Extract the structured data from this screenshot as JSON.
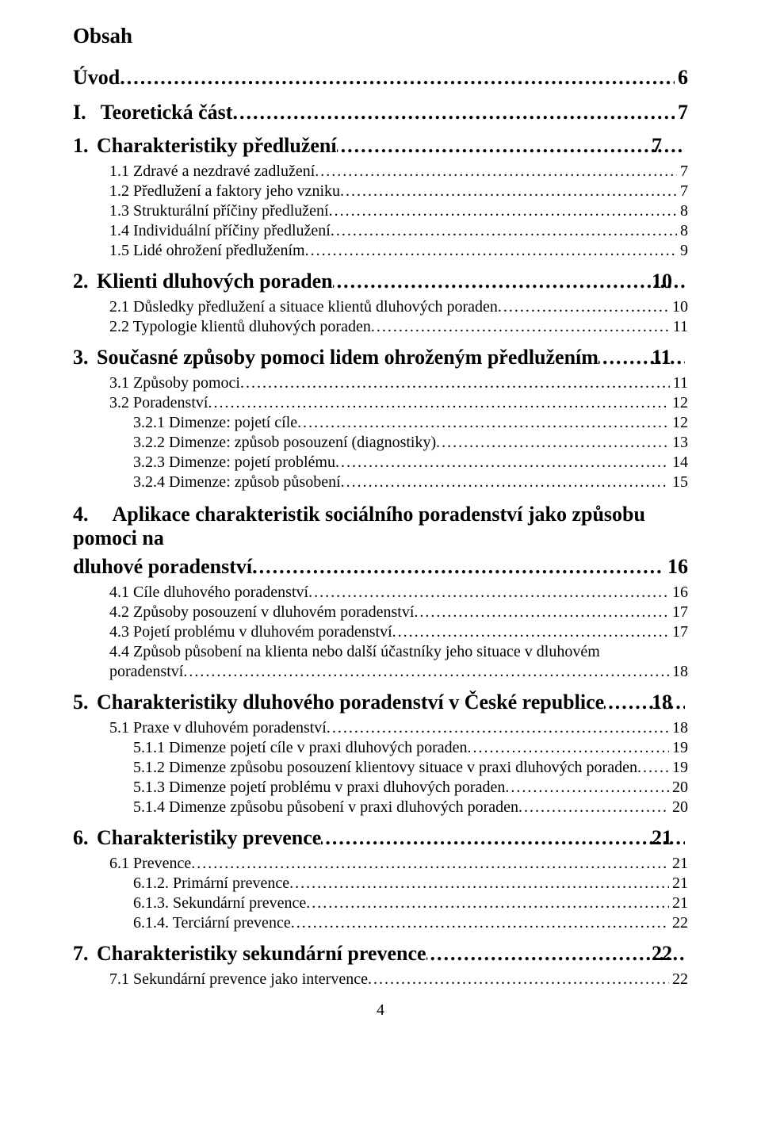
{
  "title": "Obsah",
  "lines": [
    {
      "cls": "h1",
      "label": "Úvod",
      "page": "6",
      "leader": true
    },
    {
      "cls": "h1",
      "num": "I.",
      "label": "Teoretická část",
      "page": "7",
      "leader": true
    },
    {
      "cls": "h2",
      "num": "1.",
      "label": "Charakteristiky předlužení",
      "page": "7",
      "leader": true
    },
    {
      "cls": "sub",
      "label": "1.1 Zdravé a nezdravé zadlužení",
      "page": "7",
      "leader": true
    },
    {
      "cls": "sub",
      "label": "1.2 Předlužení a faktory jeho vzniku",
      "page": "7",
      "leader": true
    },
    {
      "cls": "sub",
      "label": "1.3 Strukturální příčiny předlužení",
      "page": "8",
      "leader": true
    },
    {
      "cls": "sub",
      "label": "1.4 Individuální příčiny předlužení",
      "page": "8",
      "leader": true
    },
    {
      "cls": "sub",
      "label": "1.5 Lidé ohrožení předlužením",
      "page": "9",
      "leader": true
    },
    {
      "cls": "h2",
      "num": "2.",
      "label": "Klienti dluhových poraden",
      "page": "10",
      "leader": true
    },
    {
      "cls": "sub",
      "label": "2.1 Důsledky předlužení a situace klientů dluhových poraden",
      "page": "10",
      "leader": true
    },
    {
      "cls": "sub",
      "label": "2.2 Typologie klientů dluhových poraden",
      "page": "11",
      "leader": true
    },
    {
      "cls": "h2",
      "num": "3.",
      "label": "Současné způsoby pomoci lidem ohroženým předlužením",
      "page": "11",
      "leader": true
    },
    {
      "cls": "sub",
      "label": "3.1 Způsoby pomoci",
      "page": "11",
      "leader": true
    },
    {
      "cls": "sub",
      "label": "3.2 Poradenství",
      "page": "12",
      "leader": true
    },
    {
      "cls": "subsub",
      "label": "3.2.1 Dimenze: pojetí cíle",
      "page": "12",
      "leader": true
    },
    {
      "cls": "subsub",
      "label": "3.2.2 Dimenze: způsob posouzení (diagnostiky)",
      "page": "13",
      "leader": true
    },
    {
      "cls": "subsub",
      "label": "3.2.3 Dimenze: pojetí problému",
      "page": "14",
      "leader": true
    },
    {
      "cls": "subsub",
      "label": "3.2.4 Dimenze: způsob působení",
      "page": "15",
      "leader": true
    }
  ],
  "sec4": {
    "num": "4.",
    "line1": "Aplikace charakteristik sociálního poradenství jako způsobu pomoci na",
    "line2": "dluhové poradenství",
    "page": "16",
    "subs": [
      {
        "cls": "sub",
        "label": "4.1 Cíle dluhového poradenství",
        "page": "16",
        "leader": true
      },
      {
        "cls": "sub",
        "label": "4.2 Způsoby posouzení v dluhovém poradenství",
        "page": "17",
        "leader": true
      },
      {
        "cls": "sub",
        "label": "4.3 Pojetí problému v dluhovém poradenství",
        "page": "17",
        "leader": true
      }
    ],
    "just_line1": "4.4 Způsob působení na klienta nebo další účastníky jeho situace v dluhovém",
    "just_line2": "poradenství",
    "just_page": "18"
  },
  "rest": [
    {
      "cls": "h2",
      "num": "5.",
      "label": "Charakteristiky dluhového poradenství v České republice",
      "page": "18",
      "leader": true
    },
    {
      "cls": "sub",
      "label": "5.1 Praxe v dluhovém poradenství",
      "page": "18",
      "leader": true
    },
    {
      "cls": "subsub",
      "label": "5.1.1 Dimenze pojetí cíle v praxi dluhových poraden",
      "page": "19",
      "leader": true
    },
    {
      "cls": "subsub",
      "label": "5.1.2 Dimenze způsobu posouzení klientovy situace v praxi dluhových poraden",
      "page": "19",
      "leader": true
    },
    {
      "cls": "subsub",
      "label": "5.1.3 Dimenze pojetí problému v praxi dluhových poraden",
      "page": "20",
      "leader": true
    },
    {
      "cls": "subsub",
      "label": "5.1.4 Dimenze způsobu působení v praxi dluhových poraden",
      "page": "20",
      "leader": true
    },
    {
      "cls": "h2",
      "num": "6.",
      "label": "Charakteristiky prevence",
      "page": "21",
      "leader": true
    },
    {
      "cls": "sub",
      "label": "6.1 Prevence",
      "page": "21",
      "leader": true
    },
    {
      "cls": "subsub",
      "label": "6.1.2. Primární prevence",
      "page": "21",
      "leader": true
    },
    {
      "cls": "subsub",
      "label": "6.1.3. Sekundární prevence",
      "page": "21",
      "leader": true
    },
    {
      "cls": "subsub",
      "label": "6.1.4. Terciární prevence",
      "page": "22",
      "leader": true
    },
    {
      "cls": "h2",
      "num": "7.",
      "label": "Charakteristiky sekundární prevence",
      "page": "22",
      "leader": true
    },
    {
      "cls": "sub",
      "label": "7.1 Sekundární prevence jako intervence",
      "page": "22",
      "leader": true
    }
  ],
  "footer": "4"
}
